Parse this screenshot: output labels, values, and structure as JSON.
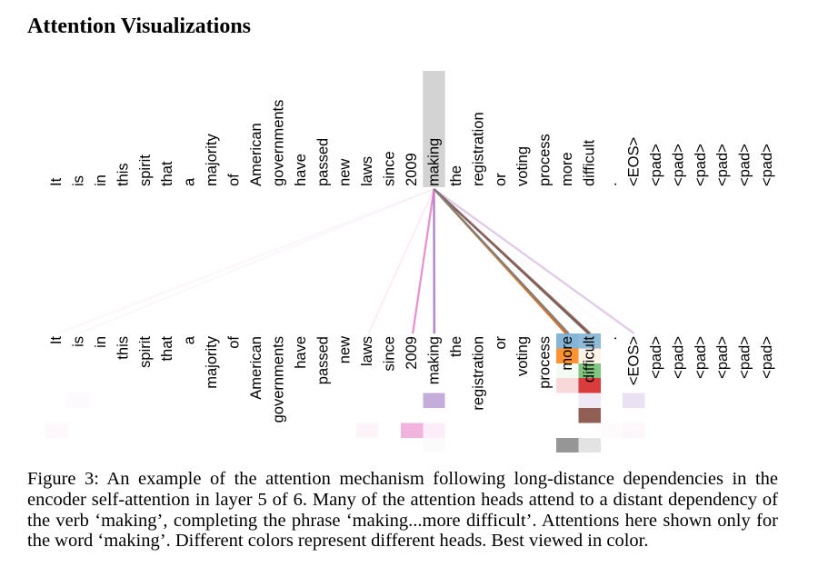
{
  "section_title": "Attention Visualizations",
  "figure": {
    "tokens": [
      "It",
      "is",
      "in",
      "this",
      "spirit",
      "that",
      "a",
      "majority",
      "of",
      "American",
      "governments",
      "have",
      "passed",
      "new",
      "laws",
      "since",
      "2009",
      "making",
      "the",
      "registration",
      "or",
      "voting",
      "process",
      "more",
      "difficult",
      ".",
      "<EOS>",
      "<pad>",
      "<pad>",
      "<pad>",
      "<pad>",
      "<pad>",
      "<pad>"
    ],
    "query_index": 17,
    "highlight_color": "#d3d3d3",
    "heads": [
      {
        "color": "#1f77b4",
        "weights": [
          0,
          0,
          0,
          0,
          0,
          0,
          0,
          0,
          0,
          0,
          0,
          0,
          0,
          0,
          0,
          0,
          0,
          0,
          0,
          0,
          0,
          0,
          0,
          0.55,
          0.5,
          0,
          0,
          0,
          0,
          0,
          0,
          0,
          0
        ]
      },
      {
        "color": "#ff7f0e",
        "weights": [
          0,
          0,
          0,
          0,
          0,
          0,
          0,
          0,
          0,
          0,
          0,
          0,
          0,
          0,
          0,
          0,
          0,
          0,
          0,
          0,
          0,
          0,
          0,
          0.85,
          0.1,
          0,
          0,
          0,
          0,
          0,
          0,
          0,
          0
        ]
      },
      {
        "color": "#2ca02c",
        "weights": [
          0,
          0,
          0,
          0,
          0,
          0,
          0,
          0,
          0,
          0,
          0,
          0,
          0,
          0,
          0,
          0,
          0,
          0,
          0,
          0,
          0,
          0,
          0,
          0.05,
          0.6,
          0,
          0,
          0,
          0,
          0,
          0,
          0,
          0
        ]
      },
      {
        "color": "#d62728",
        "weights": [
          0,
          0,
          0,
          0,
          0,
          0,
          0,
          0,
          0,
          0,
          0,
          0,
          0,
          0,
          0,
          0,
          0,
          0,
          0,
          0,
          0,
          0,
          0,
          0.18,
          0.9,
          0,
          0,
          0,
          0,
          0,
          0,
          0,
          0
        ]
      },
      {
        "color": "#9467bd",
        "weights": [
          0,
          0.03,
          0,
          0,
          0,
          0,
          0,
          0,
          0,
          0,
          0,
          0,
          0,
          0,
          0,
          0,
          0,
          0.55,
          0,
          0,
          0,
          0,
          0,
          0,
          0.15,
          0,
          0.2,
          0,
          0,
          0,
          0,
          0,
          0
        ]
      },
      {
        "color": "#8c564b",
        "weights": [
          0,
          0,
          0,
          0,
          0,
          0,
          0,
          0,
          0,
          0,
          0,
          0,
          0,
          0,
          0,
          0,
          0,
          0,
          0,
          0,
          0,
          0,
          0,
          0,
          0.95,
          0,
          0,
          0,
          0,
          0,
          0,
          0,
          0
        ]
      },
      {
        "color": "#e377c2",
        "weights": [
          0.05,
          0,
          0,
          0,
          0,
          0,
          0,
          0,
          0,
          0,
          0,
          0,
          0,
          0,
          0.08,
          0,
          0.55,
          0.12,
          0,
          0,
          0,
          0,
          0,
          0,
          0,
          0.03,
          0.06,
          0,
          0,
          0,
          0,
          0,
          0
        ]
      },
      {
        "color": "#7f7f7f",
        "weights": [
          0,
          0,
          0,
          0,
          0,
          0,
          0,
          0,
          0,
          0,
          0,
          0,
          0,
          0,
          0,
          0,
          0,
          0.03,
          0,
          0,
          0,
          0,
          0,
          0.82,
          0.22,
          0,
          0,
          0,
          0,
          0,
          0,
          0,
          0
        ]
      }
    ]
  },
  "caption": {
    "lines": [
      "Figure 3: An example of the attention mechanism following long-distance dependencies in the",
      "encoder self-attention in layer 5 of 6. Many of the attention heads attend to a distant dependency of",
      "the verb ‘making’, completing the phrase ‘making...more difficult’. Attentions here shown only for",
      "the word ‘making’. Different colors represent different heads. Best viewed in color."
    ]
  }
}
